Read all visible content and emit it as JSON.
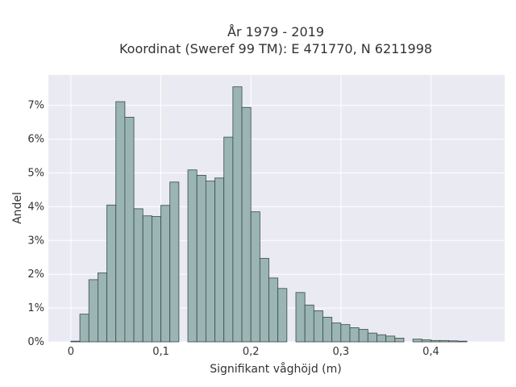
{
  "chart_data": {
    "type": "bar",
    "title_lines": [
      "År 1979 - 2019",
      "Koordinat (Sweref 99 TM): E 471770, N 6211998"
    ],
    "xlabel": "Signifikant våghöjd (m)",
    "ylabel": "Andel",
    "xlim": [
      -0.025,
      0.482
    ],
    "ylim": [
      0,
      0.079
    ],
    "x_ticks": [
      0,
      0.1,
      0.2,
      0.3,
      0.4
    ],
    "x_tick_labels": [
      "0",
      "0,1",
      "0,2",
      "0,3",
      "0,4"
    ],
    "y_ticks": [
      0,
      0.01,
      0.02,
      0.03,
      0.04,
      0.05,
      0.06,
      0.07
    ],
    "y_tick_labels": [
      "0%",
      "1%",
      "2%",
      "3%",
      "4%",
      "5%",
      "6%",
      "7%"
    ],
    "grid": true,
    "bin_width": 0.01,
    "bin_starts": [
      0.0,
      0.01,
      0.02,
      0.03,
      0.04,
      0.05,
      0.06,
      0.07,
      0.08,
      0.09,
      0.1,
      0.11,
      0.12,
      0.13,
      0.14,
      0.15,
      0.16,
      0.17,
      0.18,
      0.19,
      0.2,
      0.21,
      0.22,
      0.23,
      0.24,
      0.25,
      0.26,
      0.27,
      0.28,
      0.29,
      0.3,
      0.31,
      0.32,
      0.33,
      0.34,
      0.35,
      0.36,
      0.37,
      0.38,
      0.39,
      0.4,
      0.41,
      0.42,
      0.43
    ],
    "values": [
      0.0002,
      0.0082,
      0.0184,
      0.0204,
      0.0405,
      0.0711,
      0.0665,
      0.0394,
      0.0373,
      0.0371,
      0.0404,
      0.0473,
      0.0,
      0.0509,
      0.0493,
      0.0476,
      0.0485,
      0.0606,
      0.0755,
      0.0694,
      0.0385,
      0.0247,
      0.0189,
      0.0158,
      0.0,
      0.0146,
      0.0109,
      0.0092,
      0.0073,
      0.0056,
      0.0051,
      0.0042,
      0.0037,
      0.0026,
      0.0021,
      0.0017,
      0.0011,
      0.0,
      0.0008,
      0.0006,
      0.0004,
      0.0004,
      0.0003,
      0.0002
    ],
    "colors": {
      "bar_fill": "#9ab5b3",
      "bar_edge": "#3a4a48",
      "plot_bg": "#eaeaf2",
      "grid": "#ffffff"
    }
  }
}
